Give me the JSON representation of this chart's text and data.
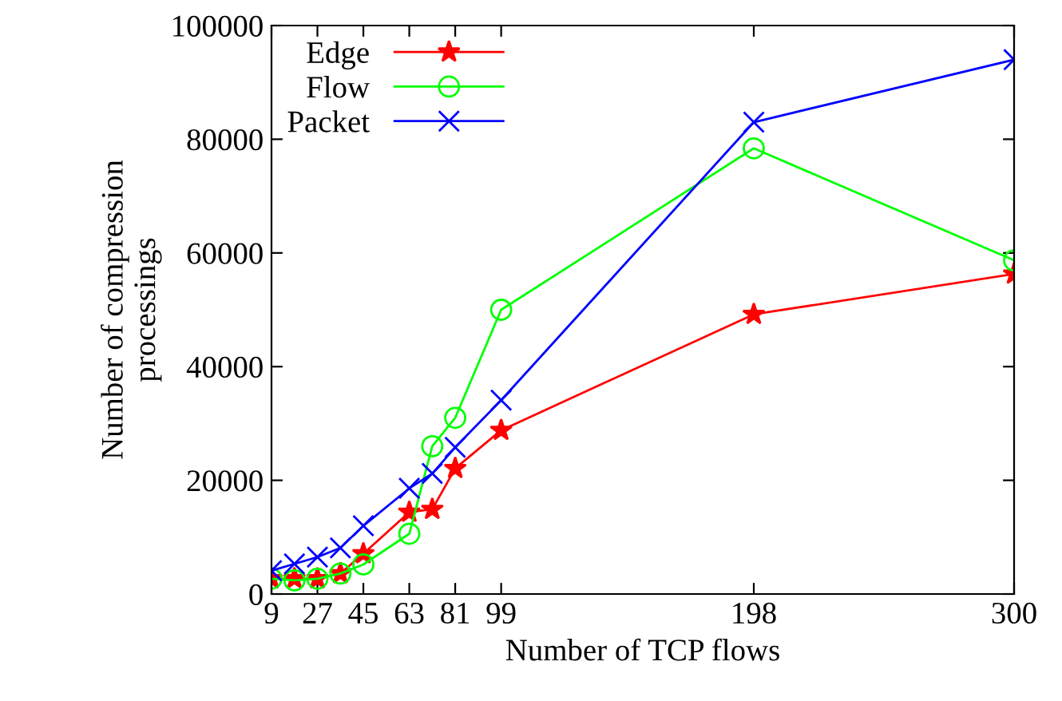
{
  "chart_data": {
    "type": "line",
    "xlabel": "Number of TCP flows",
    "ylabel": "Number of compression\nprocessings",
    "x": [
      9,
      18,
      27,
      36,
      45,
      63,
      72,
      81,
      99,
      198,
      300
    ],
    "series": [
      {
        "name": "Edge",
        "color": "#ff0000",
        "marker": "star",
        "values": [
          2700,
          2700,
          2700,
          3600,
          7100,
          14400,
          14900,
          22100,
          28800,
          49200,
          56300
        ]
      },
      {
        "name": "Flow",
        "color": "#00ff00",
        "marker": "circle",
        "values": [
          2700,
          2400,
          2700,
          3600,
          5200,
          10600,
          26000,
          31000,
          50000,
          78400,
          58700
        ]
      },
      {
        "name": "Packet",
        "color": "#0000ff",
        "marker": "cross",
        "values": [
          4100,
          5300,
          6500,
          8100,
          12000,
          18600,
          21200,
          25800,
          34100,
          83000,
          94000
        ]
      }
    ],
    "xlim": [
      9,
      300
    ],
    "xticks": [
      9,
      27,
      45,
      63,
      81,
      99,
      198,
      300
    ],
    "ylim": [
      0,
      100000
    ],
    "yticks": [
      0,
      20000,
      40000,
      60000,
      80000,
      100000
    ],
    "grid": false,
    "legend": "top left",
    "line_style": "solid"
  }
}
